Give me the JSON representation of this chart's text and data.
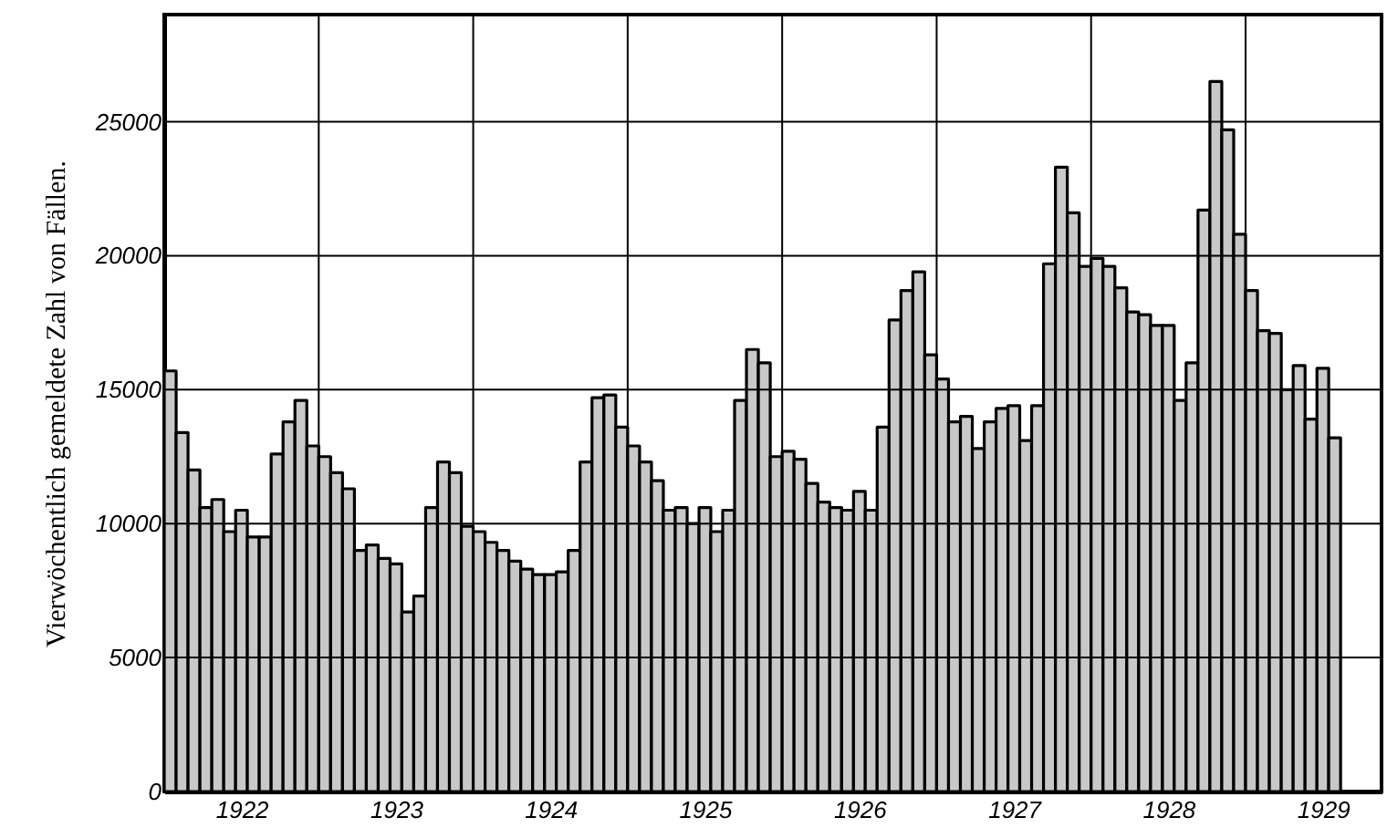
{
  "chart_data": {
    "type": "histogram",
    "ylabel": "Vierwöchentlich gemeldete Zahl von Fällen.",
    "bins": [
      1922,
      1922.077,
      1922.154,
      1922.231,
      1922.308,
      1922.385,
      1922.462,
      1922.538,
      1922.615,
      1922.692,
      1922.769,
      1922.846,
      1922.923,
      1923,
      1923.077,
      1923.154,
      1923.231,
      1923.308,
      1923.385,
      1923.462,
      1923.538,
      1923.615,
      1923.692,
      1923.769,
      1923.846,
      1923.923,
      1924,
      1924.077,
      1924.154,
      1924.231,
      1924.308,
      1924.385,
      1924.462,
      1924.538,
      1924.615,
      1924.692,
      1924.769,
      1924.846,
      1924.923,
      1925,
      1925.077,
      1925.154,
      1925.231,
      1925.308,
      1925.385,
      1925.462,
      1925.538,
      1925.615,
      1925.692,
      1925.769,
      1925.846,
      1925.923,
      1926,
      1926.077,
      1926.154,
      1926.231,
      1926.308,
      1926.385,
      1926.462,
      1926.538,
      1926.615,
      1926.692,
      1926.769,
      1926.846,
      1926.923,
      1927,
      1927.077,
      1927.154,
      1927.231,
      1927.308,
      1927.385,
      1927.462,
      1927.538,
      1927.615,
      1927.692,
      1927.769,
      1927.846,
      1927.923,
      1928,
      1928.077,
      1928.154,
      1928.231,
      1928.308,
      1928.385,
      1928.462,
      1928.538,
      1928.615,
      1928.692,
      1928.769,
      1928.846,
      1928.923,
      1929,
      1929.077,
      1929.154,
      1929.231,
      1929.308,
      1929.385,
      1929.462,
      1929.538,
      1929.615
    ],
    "values": [
      15700,
      13400,
      12000,
      10600,
      10900,
      9700,
      10500,
      9500,
      9500,
      12600,
      13800,
      14600,
      12900,
      12500,
      11900,
      11300,
      9000,
      9200,
      8700,
      8500,
      6700,
      7300,
      10600,
      12300,
      11900,
      9900,
      9700,
      9300,
      9000,
      8600,
      8300,
      8100,
      8100,
      8200,
      9000,
      12300,
      14700,
      14800,
      13600,
      12900,
      12300,
      11600,
      10500,
      10600,
      10000,
      10600,
      9700,
      10500,
      14600,
      16500,
      16000,
      12500,
      12700,
      12400,
      11500,
      10800,
      10600,
      10500,
      11200,
      10500,
      13600,
      17600,
      18700,
      19400,
      16300,
      15400,
      13800,
      14000,
      12800,
      13800,
      14300,
      14400,
      13100,
      14400,
      19700,
      23300,
      21600,
      19600,
      19900,
      19600,
      18800,
      17900,
      17800,
      17400,
      17400,
      14600,
      16000,
      21700,
      26500,
      24700,
      20800,
      18700,
      17200,
      17100,
      15000,
      15900,
      13900,
      15800,
      13200
    ],
    "color": "#000000",
    "xlim": [
      1922,
      1929.88
    ],
    "xticks": [
      {
        "value": 1922.5,
        "label": "1922"
      },
      {
        "value": 1923,
        "label": null
      },
      {
        "value": 1923.5,
        "label": "1923"
      },
      {
        "value": 1924,
        "label": null
      },
      {
        "value": 1924.5,
        "label": "1924"
      },
      {
        "value": 1925,
        "label": null
      },
      {
        "value": 1925.5,
        "label": "1925"
      },
      {
        "value": 1926,
        "label": null
      },
      {
        "value": 1926.5,
        "label": "1926"
      },
      {
        "value": 1927,
        "label": null
      },
      {
        "value": 1927.5,
        "label": "1927"
      },
      {
        "value": 1928,
        "label": null
      },
      {
        "value": 1928.5,
        "label": "1928"
      },
      {
        "value": 1929,
        "label": null
      },
      {
        "value": 1929.5,
        "label": "1929"
      }
    ],
    "ylim": [
      0,
      29000
    ],
    "yticks": [
      0,
      5000,
      10000,
      15000,
      20000,
      25000
    ],
    "grid": true
  }
}
